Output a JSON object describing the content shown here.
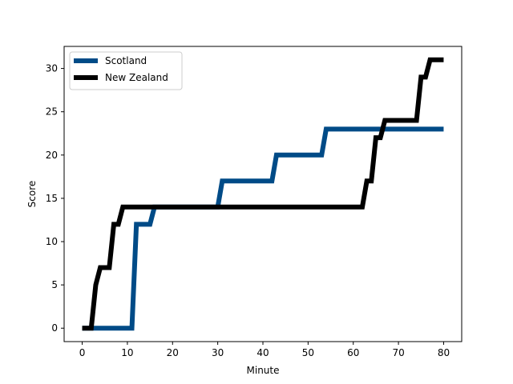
{
  "chart_data": {
    "type": "line",
    "title": "",
    "xlabel": "Minute",
    "ylabel": "Score",
    "xlim": [
      -4,
      84
    ],
    "ylim": [
      -1.55,
      32.55
    ],
    "xticks": [
      0,
      10,
      20,
      30,
      40,
      50,
      60,
      70,
      80
    ],
    "yticks": [
      0,
      5,
      10,
      15,
      20,
      25,
      30
    ],
    "grid": false,
    "legend_position": "top-left",
    "series": [
      {
        "name": "Scotland",
        "color": "#004b87",
        "x": [
          0,
          1,
          2,
          3,
          4,
          5,
          6,
          7,
          8,
          9,
          10,
          11,
          12,
          13,
          14,
          15,
          16,
          17,
          18,
          19,
          20,
          21,
          22,
          23,
          24,
          25,
          26,
          27,
          28,
          29,
          30,
          31,
          32,
          33,
          34,
          35,
          36,
          37,
          38,
          39,
          40,
          41,
          42,
          43,
          44,
          45,
          46,
          47,
          48,
          49,
          50,
          51,
          52,
          53,
          54,
          55,
          56,
          57,
          58,
          59,
          60,
          61,
          62,
          63,
          64,
          65,
          66,
          67,
          68,
          69,
          70,
          71,
          72,
          73,
          74,
          75,
          76,
          77,
          78,
          79,
          80
        ],
        "y": [
          0,
          0,
          0,
          0,
          0,
          0,
          0,
          0,
          0,
          0,
          0,
          0,
          12,
          12,
          12,
          12,
          14,
          14,
          14,
          14,
          14,
          14,
          14,
          14,
          14,
          14,
          14,
          14,
          14,
          14,
          14,
          17,
          17,
          17,
          17,
          17,
          17,
          17,
          17,
          17,
          17,
          17,
          17,
          20,
          20,
          20,
          20,
          20,
          20,
          20,
          20,
          20,
          20,
          20,
          23,
          23,
          23,
          23,
          23,
          23,
          23,
          23,
          23,
          23,
          23,
          23,
          23,
          23,
          23,
          23,
          23,
          23,
          23,
          23,
          23,
          23,
          23,
          23,
          23,
          23,
          23
        ]
      },
      {
        "name": "New Zealand",
        "color": "#000000",
        "x": [
          0,
          1,
          2,
          3,
          4,
          5,
          6,
          7,
          8,
          9,
          10,
          11,
          12,
          13,
          14,
          15,
          16,
          17,
          18,
          19,
          20,
          21,
          22,
          23,
          24,
          25,
          26,
          27,
          28,
          29,
          30,
          31,
          32,
          33,
          34,
          35,
          36,
          37,
          38,
          39,
          40,
          41,
          42,
          43,
          44,
          45,
          46,
          47,
          48,
          49,
          50,
          51,
          52,
          53,
          54,
          55,
          56,
          57,
          58,
          59,
          60,
          61,
          62,
          63,
          64,
          65,
          66,
          67,
          68,
          69,
          70,
          71,
          72,
          73,
          74,
          75,
          76,
          77,
          78,
          79,
          80
        ],
        "y": [
          0,
          0,
          0,
          5,
          7,
          7,
          7,
          12,
          12,
          14,
          14,
          14,
          14,
          14,
          14,
          14,
          14,
          14,
          14,
          14,
          14,
          14,
          14,
          14,
          14,
          14,
          14,
          14,
          14,
          14,
          14,
          14,
          14,
          14,
          14,
          14,
          14,
          14,
          14,
          14,
          14,
          14,
          14,
          14,
          14,
          14,
          14,
          14,
          14,
          14,
          14,
          14,
          14,
          14,
          14,
          14,
          14,
          14,
          14,
          14,
          14,
          14,
          14,
          17,
          17,
          22,
          22,
          24,
          24,
          24,
          24,
          24,
          24,
          24,
          24,
          29,
          29,
          31,
          31,
          31,
          31
        ]
      }
    ]
  }
}
